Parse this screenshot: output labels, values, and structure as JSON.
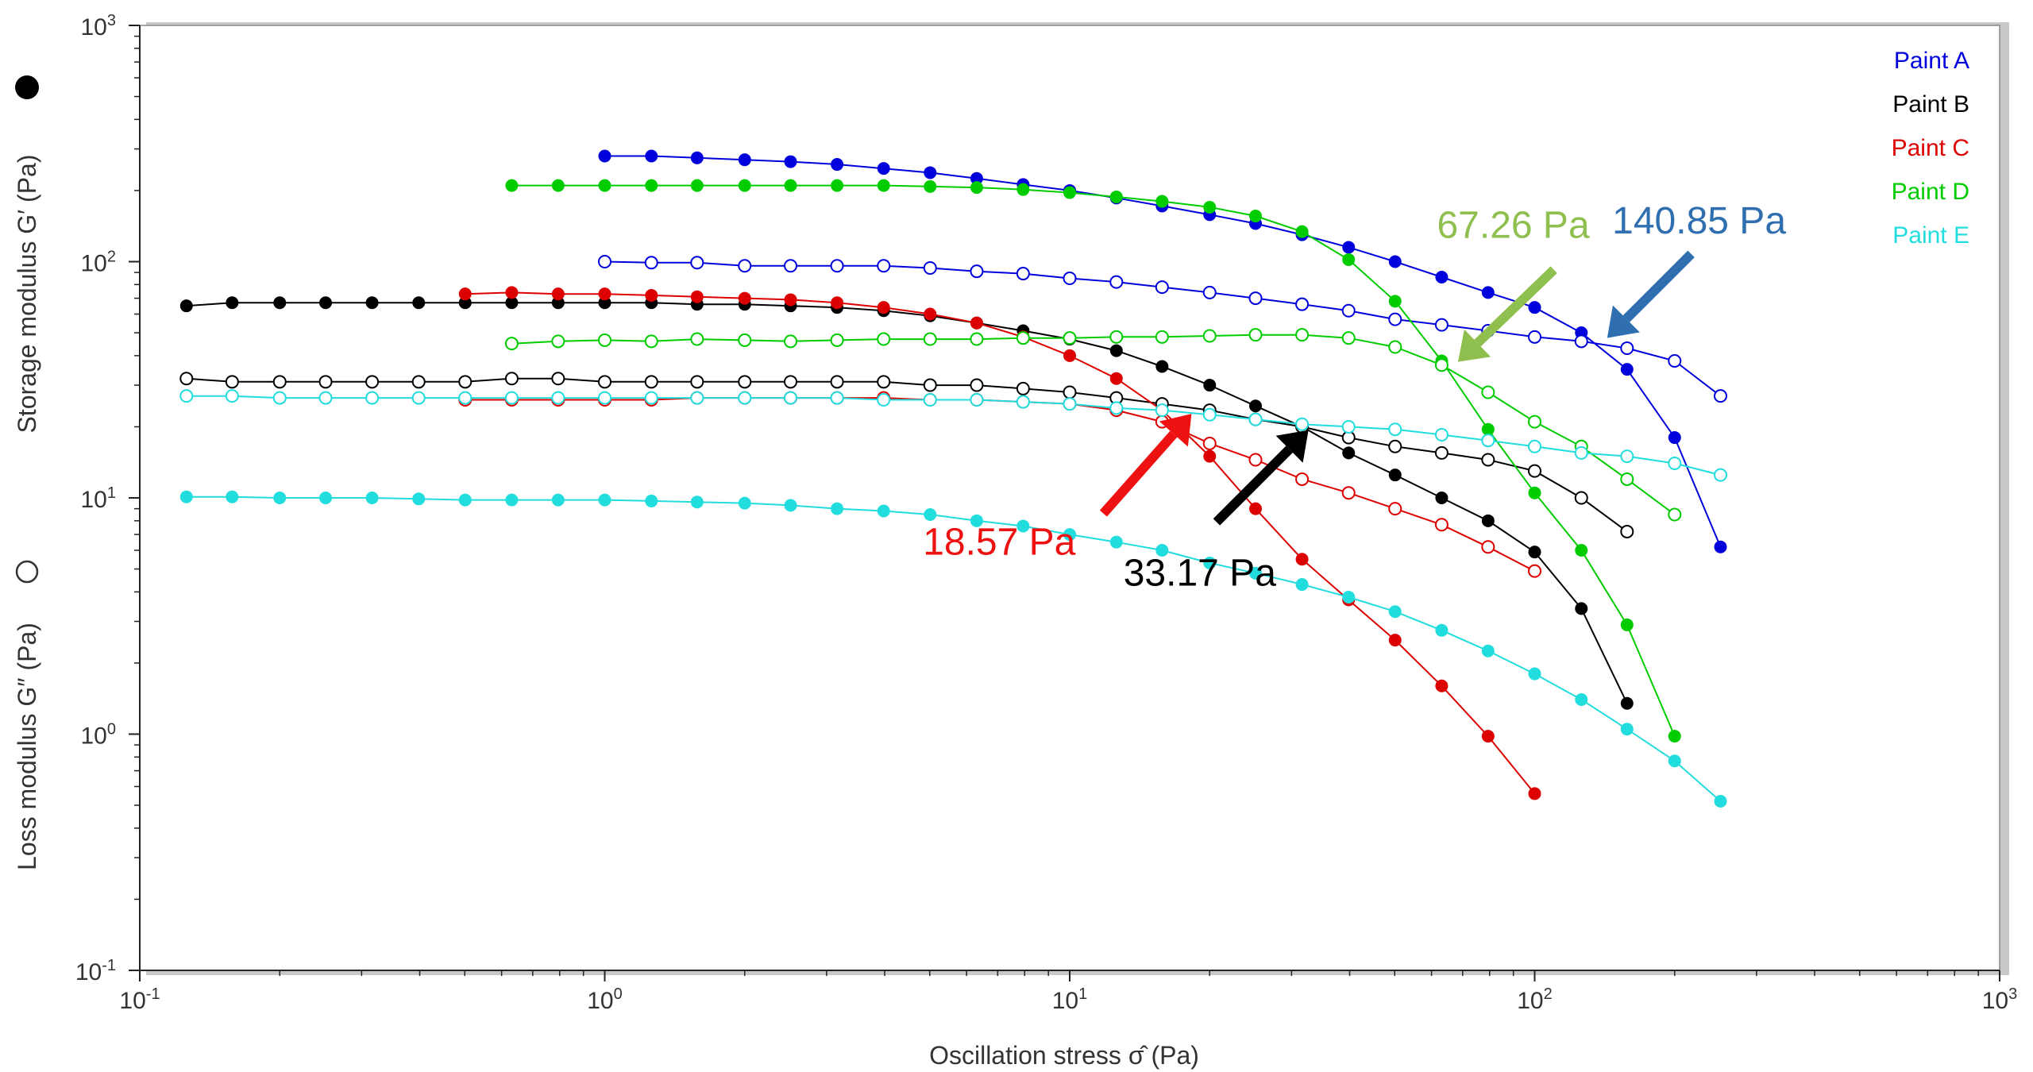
{
  "chart_data": {
    "type": "scatter",
    "xlabel": "Oscillation stress σ̂ (Pa)",
    "ylabel_storage": "Storage modulus G′ (Pa)",
    "ylabel_loss": "Loss modulus G″ (Pa)",
    "x_scale": "log",
    "y_scale": "log",
    "xlim": [
      0.1,
      1000
    ],
    "ylim": [
      0.1,
      1000
    ],
    "x_ticks": [
      0.1,
      1,
      10,
      100,
      1000
    ],
    "y_ticks": [
      0.1,
      1,
      10,
      100,
      1000
    ],
    "tick_base": "10",
    "x_tick_exponents": [
      "-1",
      "0",
      "1",
      "2",
      "3"
    ],
    "y_tick_exponents": [
      "-1",
      "0",
      "1",
      "2",
      "3"
    ],
    "grid": false,
    "legend_position": "top-right",
    "marker_legend": {
      "storage": "filled circle",
      "loss": "open circle"
    },
    "series": [
      {
        "name": "Paint A",
        "color": "#0000dd",
        "storage": {
          "x": [
            1.0,
            1.26,
            1.58,
            2.0,
            2.51,
            3.16,
            3.98,
            5.01,
            6.31,
            7.94,
            10.0,
            12.6,
            15.8,
            20.0,
            25.1,
            31.6,
            39.8,
            50.1,
            63.1,
            79.4,
            100,
            126,
            158,
            200,
            251
          ],
          "y": [
            280,
            280,
            275,
            270,
            265,
            258,
            248,
            238,
            225,
            212,
            200,
            186,
            172,
            158,
            145,
            130,
            115,
            100,
            86,
            74,
            64,
            50,
            35,
            18,
            6.2
          ]
        },
        "loss": {
          "x": [
            1.0,
            1.26,
            1.58,
            2.0,
            2.51,
            3.16,
            3.98,
            5.01,
            6.31,
            7.94,
            10.0,
            12.6,
            15.8,
            20.0,
            25.1,
            31.6,
            39.8,
            50.1,
            63.1,
            79.4,
            100,
            126,
            158,
            200,
            251
          ],
          "y": [
            100,
            99,
            99,
            96,
            96,
            96,
            96,
            94,
            91,
            89,
            85,
            82,
            78,
            74,
            70,
            66,
            62,
            57,
            54,
            51,
            48,
            46,
            43,
            38,
            27
          ]
        }
      },
      {
        "name": "Paint B",
        "color": "#000000",
        "storage": {
          "x": [
            0.126,
            0.158,
            0.2,
            0.251,
            0.316,
            0.398,
            0.501,
            0.631,
            0.794,
            1.0,
            1.26,
            1.58,
            2.0,
            2.51,
            3.16,
            3.98,
            5.01,
            6.31,
            7.94,
            10.0,
            12.6,
            15.8,
            20.0,
            25.1,
            31.6,
            39.8,
            50.1,
            63.1,
            79.4,
            100,
            126,
            158
          ],
          "y": [
            65,
            67,
            67,
            67,
            67,
            67,
            67,
            67,
            67,
            67,
            67,
            66,
            66,
            65,
            64,
            62,
            59,
            55,
            51,
            47,
            42,
            36,
            30,
            24.5,
            20,
            15.5,
            12.5,
            10,
            8.0,
            5.9,
            3.4,
            1.35
          ]
        },
        "loss": {
          "x": [
            0.126,
            0.158,
            0.2,
            0.251,
            0.316,
            0.398,
            0.501,
            0.631,
            0.794,
            1.0,
            1.26,
            1.58,
            2.0,
            2.51,
            3.16,
            3.98,
            5.01,
            6.31,
            7.94,
            10.0,
            12.6,
            15.8,
            20.0,
            25.1,
            31.6,
            39.8,
            50.1,
            63.1,
            79.4,
            100,
            126,
            158
          ],
          "y": [
            32,
            31,
            31,
            31,
            31,
            31,
            31,
            32,
            32,
            31,
            31,
            31,
            31,
            31,
            31,
            31,
            30,
            30,
            29,
            28,
            26.5,
            25,
            23.5,
            21.5,
            20,
            18,
            16.5,
            15.5,
            14.5,
            13,
            10,
            7.2
          ]
        }
      },
      {
        "name": "Paint C",
        "color": "#dd0000",
        "storage": {
          "x": [
            0.501,
            0.631,
            0.794,
            1.0,
            1.26,
            1.58,
            2.0,
            2.51,
            3.16,
            3.98,
            5.01,
            6.31,
            7.94,
            10.0,
            12.6,
            15.8,
            20.0,
            25.1,
            31.6,
            39.8,
            50.1,
            63.1,
            79.4,
            100
          ],
          "y": [
            73,
            74,
            73,
            73,
            72,
            71,
            70,
            69,
            67,
            64,
            60,
            55,
            48,
            40,
            32,
            23.5,
            15,
            9.0,
            5.5,
            3.7,
            2.5,
            1.6,
            0.98,
            0.56
          ]
        },
        "loss": {
          "x": [
            0.501,
            0.631,
            0.794,
            1.0,
            1.26,
            1.58,
            2.0,
            2.51,
            3.16,
            3.98,
            5.01,
            6.31,
            7.94,
            10.0,
            12.6,
            15.8,
            20.0,
            25.1,
            31.6,
            39.8,
            50.1,
            63.1,
            79.4,
            100
          ],
          "y": [
            26,
            26,
            26,
            26,
            26,
            26.5,
            26.5,
            26.5,
            26.5,
            26.5,
            26,
            26,
            25.5,
            25,
            23.5,
            21,
            17,
            14.5,
            12,
            10.5,
            9.0,
            7.7,
            6.2,
            4.9
          ]
        }
      },
      {
        "name": "Paint D",
        "color": "#00cc00",
        "storage": {
          "x": [
            0.631,
            0.794,
            1.0,
            1.26,
            1.58,
            2.0,
            2.51,
            3.16,
            3.98,
            5.01,
            6.31,
            7.94,
            10.0,
            12.6,
            15.8,
            20.0,
            25.1,
            31.6,
            39.8,
            50.1,
            63.1,
            79.4,
            100,
            126,
            158,
            200
          ],
          "y": [
            210,
            210,
            210,
            210,
            210,
            210,
            210,
            210,
            210,
            208,
            206,
            202,
            196,
            188,
            180,
            170,
            156,
            134,
            102,
            68,
            38,
            19.5,
            10.5,
            6.0,
            2.9,
            0.98
          ]
        },
        "loss": {
          "x": [
            0.631,
            0.794,
            1.0,
            1.26,
            1.58,
            2.0,
            2.51,
            3.16,
            3.98,
            5.01,
            6.31,
            7.94,
            10.0,
            12.6,
            15.8,
            20.0,
            25.1,
            31.6,
            39.8,
            50.1,
            63.1,
            79.4,
            100,
            126,
            158,
            200
          ],
          "y": [
            45,
            46,
            46.5,
            46,
            47,
            46.5,
            46,
            46.5,
            47,
            47,
            47,
            47.5,
            47.5,
            48,
            48,
            48.5,
            49,
            49,
            47.5,
            43.5,
            36.5,
            28,
            21,
            16.5,
            12,
            8.5
          ]
        }
      },
      {
        "name": "Paint E",
        "color": "#22dddd",
        "storage": {
          "x": [
            0.126,
            0.158,
            0.2,
            0.251,
            0.316,
            0.398,
            0.501,
            0.631,
            0.794,
            1.0,
            1.26,
            1.58,
            2.0,
            2.51,
            3.16,
            3.98,
            5.01,
            6.31,
            7.94,
            10.0,
            12.6,
            15.8,
            20.0,
            25.1,
            31.6,
            39.8,
            50.1,
            63.1,
            79.4,
            100,
            126,
            158,
            200,
            251
          ],
          "y": [
            10.1,
            10.1,
            10.0,
            10.0,
            10.0,
            9.9,
            9.8,
            9.8,
            9.8,
            9.8,
            9.7,
            9.6,
            9.5,
            9.3,
            9.0,
            8.8,
            8.5,
            8.0,
            7.6,
            7.0,
            6.5,
            6.0,
            5.3,
            4.8,
            4.3,
            3.8,
            3.3,
            2.75,
            2.25,
            1.8,
            1.4,
            1.05,
            0.77,
            0.52
          ]
        },
        "loss": {
          "x": [
            0.126,
            0.158,
            0.2,
            0.251,
            0.316,
            0.398,
            0.501,
            0.631,
            0.794,
            1.0,
            1.26,
            1.58,
            2.0,
            2.51,
            3.16,
            3.98,
            5.01,
            6.31,
            7.94,
            10.0,
            12.6,
            15.8,
            20.0,
            25.1,
            31.6,
            39.8,
            50.1,
            63.1,
            79.4,
            100,
            126,
            158,
            200,
            251
          ],
          "y": [
            27,
            27,
            26.5,
            26.5,
            26.5,
            26.5,
            26.5,
            26.5,
            26.5,
            26.5,
            26.5,
            26.5,
            26.5,
            26.5,
            26.5,
            26,
            26,
            26,
            25.5,
            25,
            24,
            23.5,
            22.5,
            21.5,
            20.5,
            20,
            19.5,
            18.5,
            17.5,
            16.5,
            15.5,
            15,
            14,
            12.5
          ]
        }
      }
    ],
    "annotations": [
      {
        "text": "18.57 Pa",
        "color": "#ee1111",
        "value_x": 18.57,
        "value_y": 23.5
      },
      {
        "text": "33.17 Pa",
        "color": "#000000",
        "value_x": 33.17,
        "value_y": 20.0
      },
      {
        "text": "67.26 Pa",
        "color": "#8fc04f",
        "value_x": 67.26,
        "value_y": 36.5
      },
      {
        "text": "140.85 Pa",
        "color": "#2f6fb0",
        "value_x": 140.85,
        "value_y": 46
      }
    ]
  }
}
